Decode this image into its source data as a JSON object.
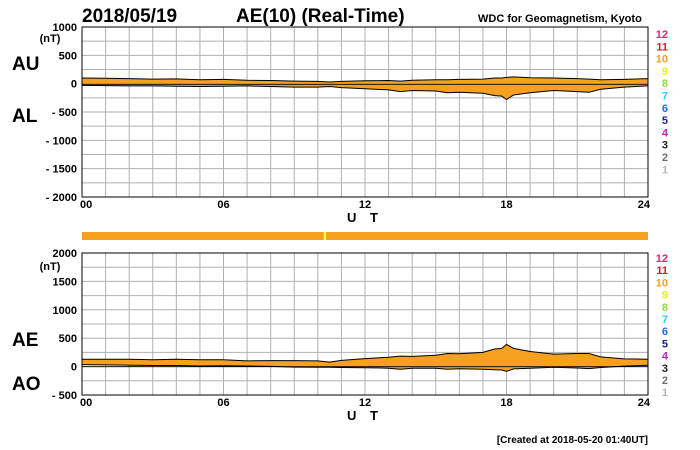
{
  "header": {
    "date": "2018/05/19",
    "title": "AE(10) (Real-Time)",
    "source": "WDC for Geomagnetism, Kyoto"
  },
  "footer": {
    "created": "[Created at 2018-05-20 01:40UT]"
  },
  "colors": {
    "fill": "#f5a01e",
    "grid": "#b0b0b0",
    "bar": "#f5a01e",
    "bar_highlight": "#ffff44"
  },
  "panels": {
    "top": {
      "left_label_upper": "AU",
      "left_label_lower": "AL",
      "unit": "(nT)",
      "x_axis_label": "U T"
    },
    "bottom": {
      "left_label_upper": "AE",
      "left_label_lower": "AO",
      "unit": "(nT)",
      "x_axis_label": "U T"
    }
  },
  "station_legend": [
    {
      "label": "12",
      "color": "#e8207a"
    },
    {
      "label": "11",
      "color": "#e0181e"
    },
    {
      "label": "10",
      "color": "#f5a01e"
    },
    {
      "label": "9",
      "color": "#f0f000"
    },
    {
      "label": "8",
      "color": "#90e030"
    },
    {
      "label": "7",
      "color": "#30d0d8"
    },
    {
      "label": "6",
      "color": "#1e70e0"
    },
    {
      "label": "5",
      "color": "#2020a0"
    },
    {
      "label": "4",
      "color": "#c020c0"
    },
    {
      "label": "3",
      "color": "#202020"
    },
    {
      "label": "2",
      "color": "#707070"
    },
    {
      "label": "1",
      "color": "#b8b8b8"
    }
  ],
  "station_bar": {
    "segments": [
      {
        "start_hour": 10.25,
        "end_hour": 10.35,
        "highlight": true
      }
    ]
  },
  "chart_data": [
    {
      "type": "area",
      "panel": "AU/AL",
      "title": "AE(10) (Real-Time)",
      "xlabel": "U T",
      "ylabel": "(nT)",
      "xlim": [
        0,
        24
      ],
      "ylim": [
        -2000,
        1000
      ],
      "x_ticks": [
        "00",
        "06",
        "12",
        "18",
        "24"
      ],
      "y_ticks": [
        "1000",
        "500",
        "0",
        "- 500",
        "- 1000",
        "- 1500",
        "- 2000"
      ],
      "y_tick_values": [
        1000,
        500,
        0,
        -500,
        -1000,
        -1500,
        -2000
      ],
      "grid": true,
      "x": [
        0,
        1,
        2,
        3,
        4,
        5,
        6,
        7,
        8,
        9,
        10,
        10.5,
        11,
        12,
        13,
        13.5,
        14,
        15,
        15.5,
        16,
        17,
        17.5,
        17.8,
        18,
        18.3,
        19,
        20,
        21,
        21.5,
        22,
        23,
        24
      ],
      "series": [
        {
          "name": "AU",
          "values": [
            100,
            95,
            90,
            80,
            85,
            70,
            75,
            60,
            55,
            45,
            40,
            30,
            40,
            50,
            55,
            45,
            60,
            70,
            70,
            75,
            80,
            100,
            100,
            110,
            120,
            105,
            100,
            90,
            80,
            70,
            75,
            90
          ]
        },
        {
          "name": "AL",
          "values": [
            -30,
            -35,
            -40,
            -40,
            -45,
            -50,
            -45,
            -40,
            -50,
            -60,
            -60,
            -50,
            -70,
            -90,
            -110,
            -140,
            -120,
            -130,
            -160,
            -150,
            -170,
            -210,
            -220,
            -280,
            -200,
            -160,
            -120,
            -140,
            -150,
            -100,
            -60,
            -40
          ]
        }
      ]
    },
    {
      "type": "area",
      "panel": "AE/AO",
      "xlabel": "U T",
      "ylabel": "(nT)",
      "xlim": [
        0,
        24
      ],
      "ylim": [
        -500,
        2000
      ],
      "x_ticks": [
        "00",
        "06",
        "12",
        "18",
        "24"
      ],
      "y_ticks": [
        "2000",
        "1500",
        "1000",
        "500",
        "0",
        "- 500"
      ],
      "y_tick_values": [
        2000,
        1500,
        1000,
        500,
        0,
        -500
      ],
      "grid": true,
      "x": [
        0,
        1,
        2,
        3,
        4,
        5,
        6,
        7,
        8,
        9,
        10,
        10.5,
        11,
        12,
        13,
        13.5,
        14,
        15,
        15.5,
        16,
        17,
        17.5,
        17.8,
        18,
        18.3,
        19,
        20,
        21,
        21.5,
        22,
        23,
        24
      ],
      "series": [
        {
          "name": "AE",
          "values": [
            130,
            130,
            130,
            120,
            130,
            120,
            120,
            100,
            105,
            105,
            100,
            80,
            110,
            140,
            165,
            185,
            180,
            200,
            230,
            225,
            250,
            310,
            320,
            390,
            320,
            265,
            220,
            230,
            230,
            170,
            135,
            130
          ]
        },
        {
          "name": "AO",
          "values": [
            35,
            30,
            25,
            20,
            20,
            10,
            15,
            10,
            3,
            -8,
            -10,
            -10,
            -15,
            -20,
            -28,
            -48,
            -30,
            -30,
            -45,
            -38,
            -45,
            -55,
            -60,
            -85,
            -40,
            -28,
            -10,
            -25,
            -35,
            -15,
            8,
            25
          ]
        }
      ]
    }
  ]
}
